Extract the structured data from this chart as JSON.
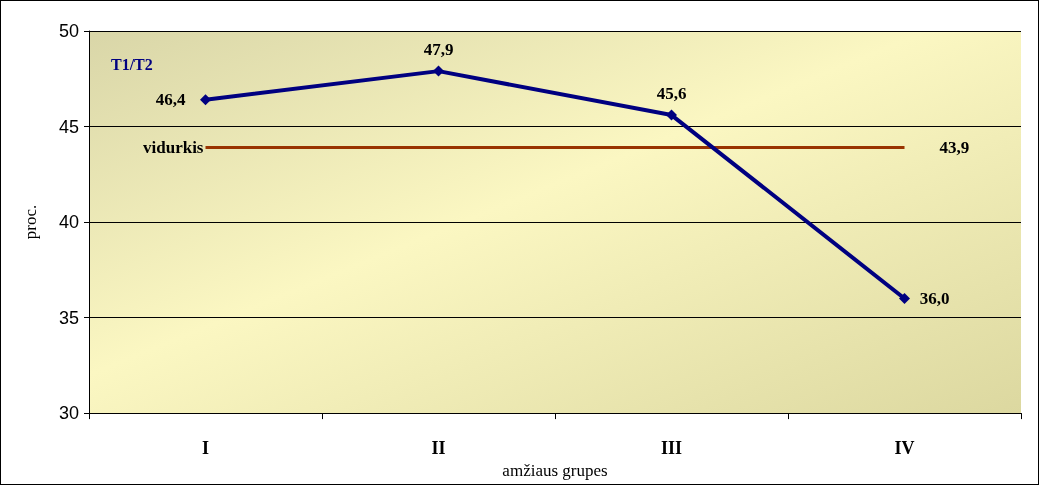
{
  "chart_data": {
    "type": "line",
    "xlabel": "amžiaus grupes",
    "ylabel": "proc.",
    "categories": [
      "I",
      "II",
      "III",
      "IV"
    ],
    "series": [
      {
        "name": "T1/T2",
        "color": "#000080",
        "values": [
          46.4,
          47.9,
          45.6,
          36.0
        ],
        "value_labels": [
          "46,4",
          "47,9",
          "45,6",
          "36,0"
        ]
      }
    ],
    "ylim": [
      30,
      50
    ],
    "yticks": [
      30,
      35,
      40,
      45,
      50
    ],
    "grid": "y",
    "marker": "diamond",
    "line_style": "solid",
    "legend": "top left",
    "ref_lines": [
      {
        "axis": "y",
        "value": 43.9,
        "label": "vidurkis",
        "color": "#993300"
      }
    ],
    "annotations": [
      {
        "text": "43,9",
        "x": "IV",
        "y": 43.9
      }
    ]
  }
}
